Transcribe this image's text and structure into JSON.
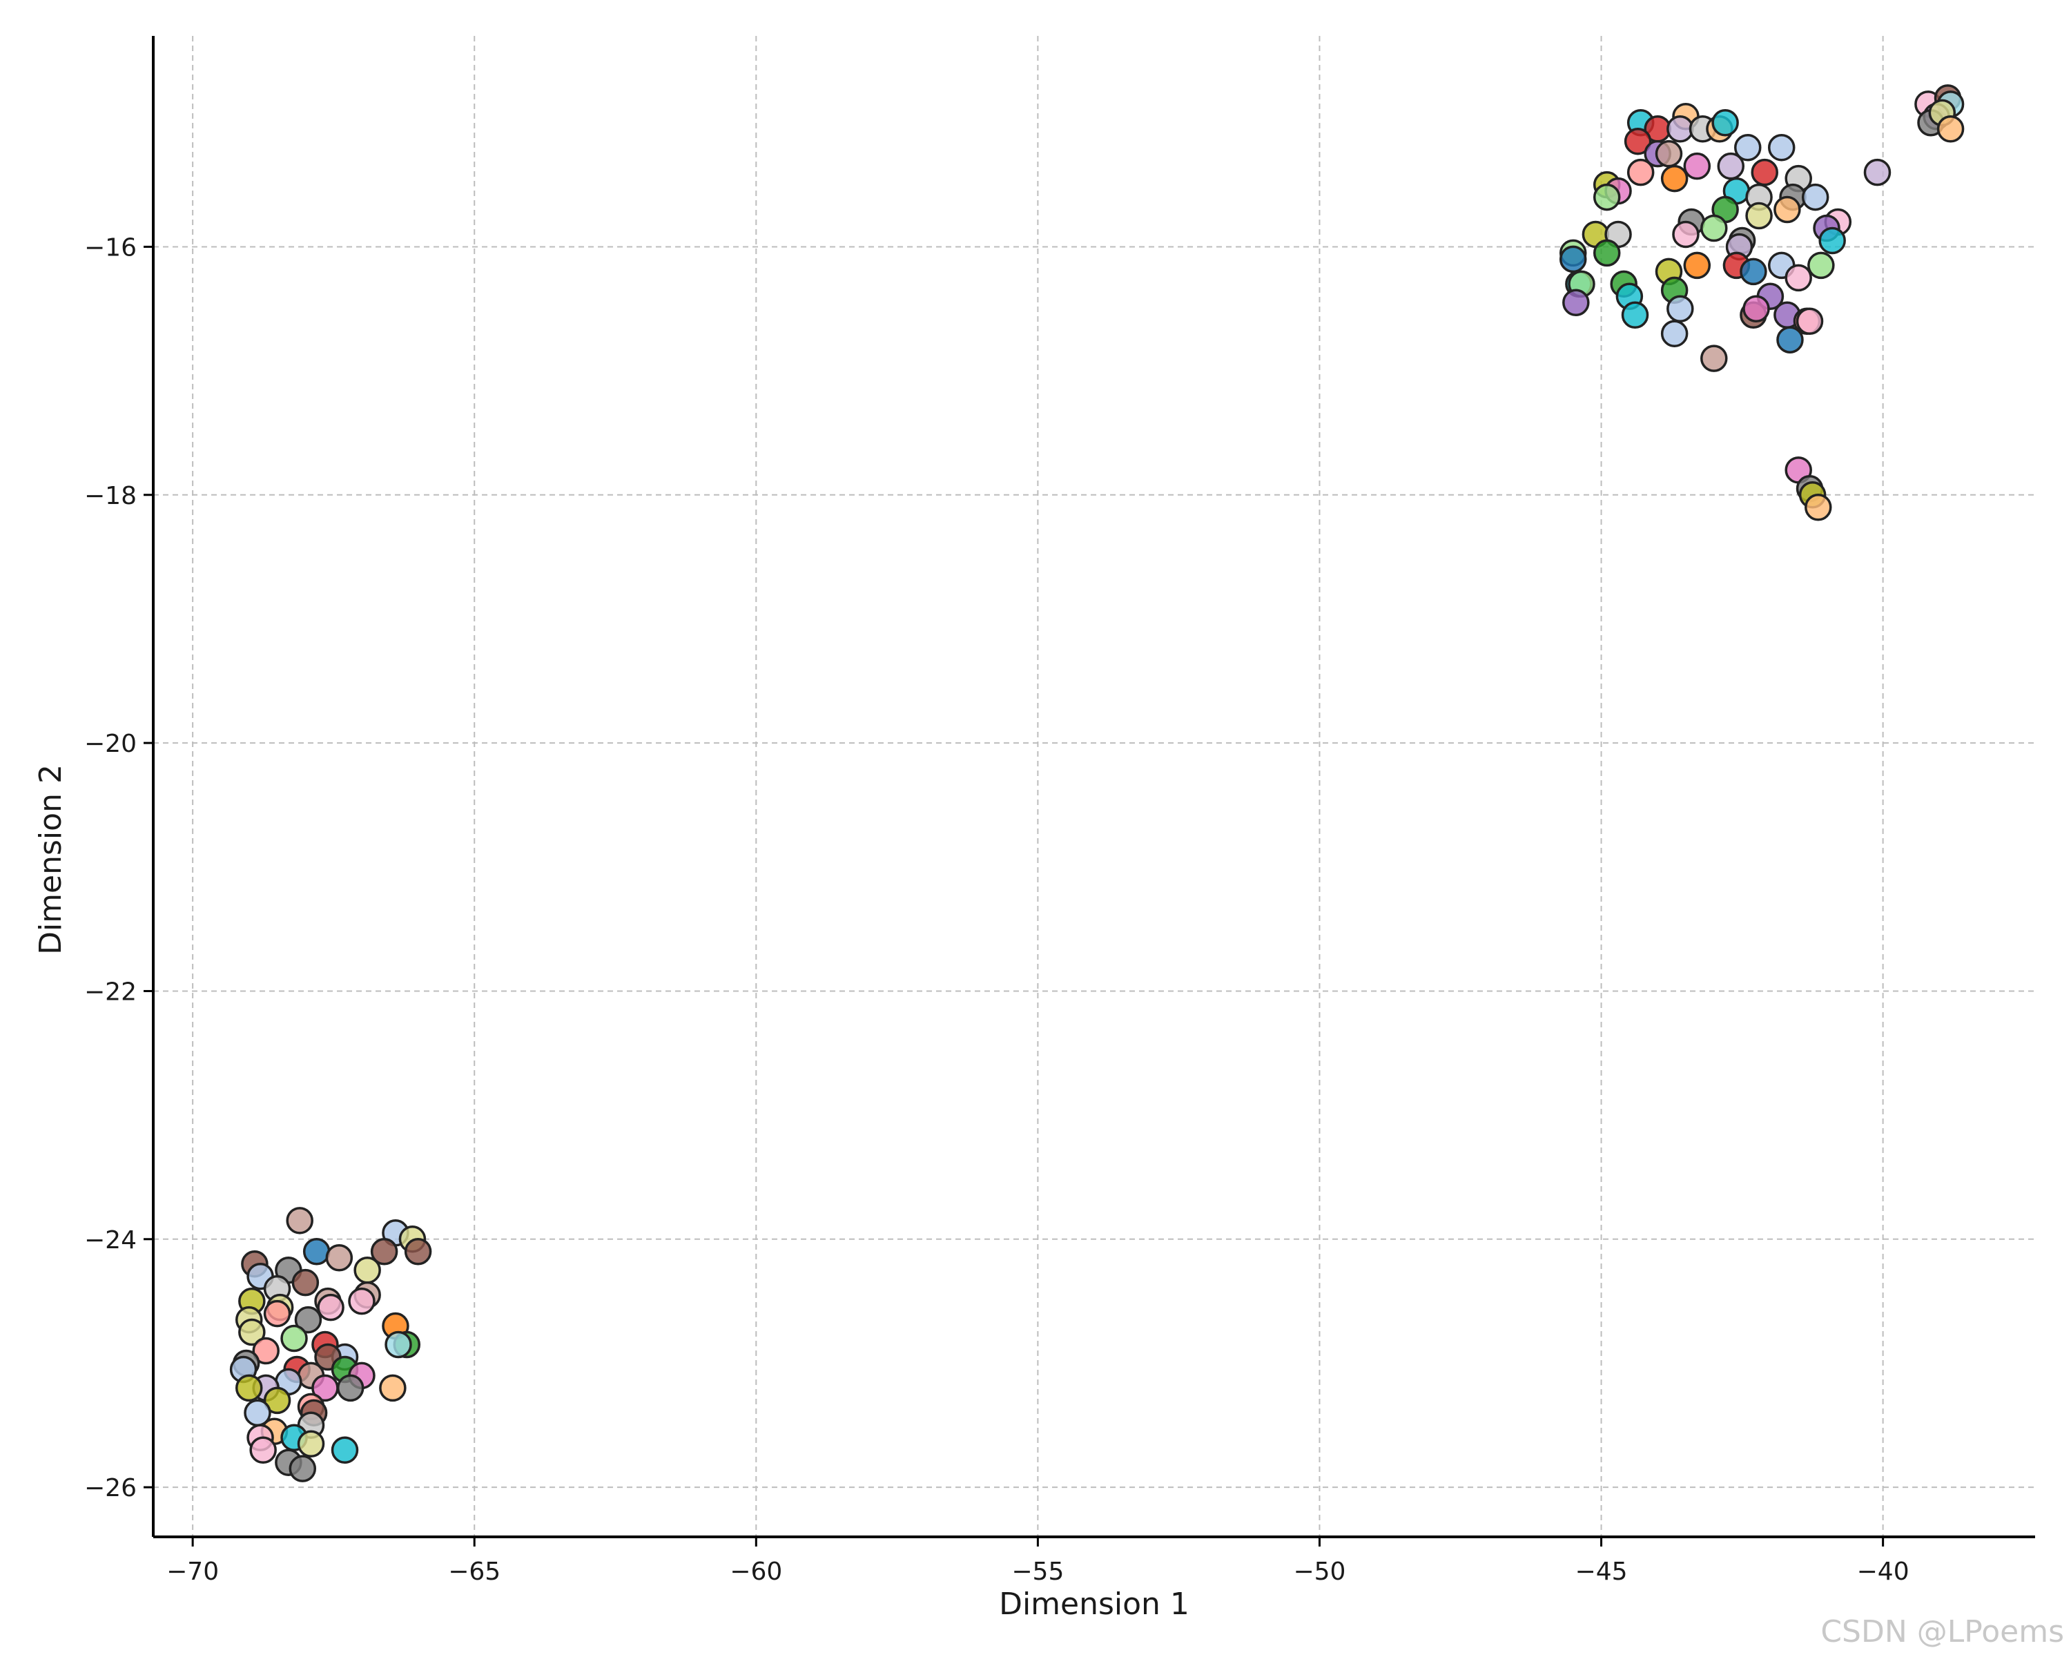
{
  "chart_data": {
    "type": "scatter",
    "title": "",
    "xlabel": "Dimension 1",
    "ylabel": "Dimension 2",
    "xlim": [
      -70.7,
      -37.3
    ],
    "ylim": [
      -26.4,
      -14.3
    ],
    "xticks": [
      -70,
      -65,
      -60,
      -55,
      -50,
      -45,
      -40
    ],
    "yticks": [
      -16,
      -18,
      -20,
      -22,
      -24,
      -26
    ],
    "xtick_labels": [
      "−70",
      "−65",
      "−60",
      "−55",
      "−50",
      "−45",
      "−40"
    ],
    "ytick_labels": [
      "−16",
      "−18",
      "−20",
      "−22",
      "−24",
      "−26"
    ],
    "grid": true,
    "grid_style": "dashed",
    "legend": "none",
    "point_outline_color": "#222222",
    "palette": [
      "#1f77b4",
      "#ff7f0e",
      "#2ca02c",
      "#d62728",
      "#9467bd",
      "#8c564b",
      "#e377c2",
      "#7f7f7f",
      "#bcbd22",
      "#17becf",
      "#aec7e8",
      "#ffbb78",
      "#98df8a",
      "#ff9896",
      "#c5b0d5",
      "#c49c94",
      "#f7b6d2",
      "#c7c7c7",
      "#dbdb8d",
      "#9edae5"
    ],
    "points": [
      {
        "x": -44.3,
        "y": -15.0,
        "color": "#17becf"
      },
      {
        "x": -44.0,
        "y": -15.05,
        "color": "#d62728"
      },
      {
        "x": -44.35,
        "y": -15.15,
        "color": "#d62728"
      },
      {
        "x": -43.5,
        "y": -14.95,
        "color": "#ffbb78"
      },
      {
        "x": -43.6,
        "y": -15.05,
        "color": "#c5b0d5"
      },
      {
        "x": -43.2,
        "y": -15.05,
        "color": "#c7c7c7"
      },
      {
        "x": -42.9,
        "y": -15.05,
        "color": "#ffbb78"
      },
      {
        "x": -42.8,
        "y": -15.0,
        "color": "#17becf"
      },
      {
        "x": -42.4,
        "y": -15.2,
        "color": "#aec7e8"
      },
      {
        "x": -41.8,
        "y": -15.2,
        "color": "#aec7e8"
      },
      {
        "x": -44.0,
        "y": -15.25,
        "color": "#9467bd"
      },
      {
        "x": -43.8,
        "y": -15.25,
        "color": "#c49c94"
      },
      {
        "x": -44.3,
        "y": -15.4,
        "color": "#ff9896"
      },
      {
        "x": -43.7,
        "y": -15.45,
        "color": "#ff7f0e"
      },
      {
        "x": -43.3,
        "y": -15.35,
        "color": "#e377c2"
      },
      {
        "x": -42.7,
        "y": -15.35,
        "color": "#c5b0d5"
      },
      {
        "x": -42.1,
        "y": -15.4,
        "color": "#d62728"
      },
      {
        "x": -41.5,
        "y": -15.45,
        "color": "#c7c7c7"
      },
      {
        "x": -40.1,
        "y": -15.4,
        "color": "#c5b0d5"
      },
      {
        "x": -44.9,
        "y": -15.5,
        "color": "#bcbd22"
      },
      {
        "x": -44.7,
        "y": -15.55,
        "color": "#e377c2"
      },
      {
        "x": -44.9,
        "y": -15.6,
        "color": "#98df8a"
      },
      {
        "x": -42.6,
        "y": -15.55,
        "color": "#17becf"
      },
      {
        "x": -42.2,
        "y": -15.6,
        "color": "#c7c7c7"
      },
      {
        "x": -41.6,
        "y": -15.6,
        "color": "#7f7f7f"
      },
      {
        "x": -41.2,
        "y": -15.6,
        "color": "#aec7e8"
      },
      {
        "x": -41.7,
        "y": -15.7,
        "color": "#ffbb78"
      },
      {
        "x": -42.8,
        "y": -15.7,
        "color": "#2ca02c"
      },
      {
        "x": -42.2,
        "y": -15.75,
        "color": "#dbdb8d"
      },
      {
        "x": -43.4,
        "y": -15.8,
        "color": "#7f7f7f"
      },
      {
        "x": -40.8,
        "y": -15.8,
        "color": "#f7b6d2"
      },
      {
        "x": -41.0,
        "y": -15.85,
        "color": "#9467bd"
      },
      {
        "x": -45.1,
        "y": -15.9,
        "color": "#bcbd22"
      },
      {
        "x": -44.7,
        "y": -15.9,
        "color": "#c7c7c7"
      },
      {
        "x": -43.5,
        "y": -15.9,
        "color": "#f7b6d2"
      },
      {
        "x": -43.0,
        "y": -15.85,
        "color": "#98df8a"
      },
      {
        "x": -40.9,
        "y": -15.95,
        "color": "#17becf"
      },
      {
        "x": -42.5,
        "y": -15.95,
        "color": "#7f7f7f"
      },
      {
        "x": -42.55,
        "y": -16.0,
        "color": "#c5b0d5"
      },
      {
        "x": -45.5,
        "y": -16.05,
        "color": "#98df8a"
      },
      {
        "x": -44.9,
        "y": -16.05,
        "color": "#2ca02c"
      },
      {
        "x": -45.5,
        "y": -16.1,
        "color": "#1f77b4"
      },
      {
        "x": -43.3,
        "y": -16.15,
        "color": "#ff7f0e"
      },
      {
        "x": -42.6,
        "y": -16.15,
        "color": "#d62728"
      },
      {
        "x": -41.8,
        "y": -16.15,
        "color": "#aec7e8"
      },
      {
        "x": -41.1,
        "y": -16.15,
        "color": "#98df8a"
      },
      {
        "x": -43.8,
        "y": -16.2,
        "color": "#bcbd22"
      },
      {
        "x": -42.3,
        "y": -16.2,
        "color": "#1f77b4"
      },
      {
        "x": -41.5,
        "y": -16.25,
        "color": "#f7b6d2"
      },
      {
        "x": -45.4,
        "y": -16.3,
        "color": "#17becf"
      },
      {
        "x": -45.35,
        "y": -16.3,
        "color": "#98df8a"
      },
      {
        "x": -44.6,
        "y": -16.3,
        "color": "#2ca02c"
      },
      {
        "x": -43.7,
        "y": -16.35,
        "color": "#2ca02c"
      },
      {
        "x": -44.5,
        "y": -16.4,
        "color": "#17becf"
      },
      {
        "x": -42.0,
        "y": -16.4,
        "color": "#9467bd"
      },
      {
        "x": -45.45,
        "y": -16.45,
        "color": "#9467bd"
      },
      {
        "x": -43.6,
        "y": -16.5,
        "color": "#aec7e8"
      },
      {
        "x": -42.3,
        "y": -16.55,
        "color": "#8c564b"
      },
      {
        "x": -42.25,
        "y": -16.5,
        "color": "#e377c2"
      },
      {
        "x": -41.7,
        "y": -16.55,
        "color": "#9467bd"
      },
      {
        "x": -44.4,
        "y": -16.55,
        "color": "#17becf"
      },
      {
        "x": -41.35,
        "y": -16.6,
        "color": "#ff9896"
      },
      {
        "x": -41.3,
        "y": -16.6,
        "color": "#f7b6d2"
      },
      {
        "x": -43.7,
        "y": -16.7,
        "color": "#aec7e8"
      },
      {
        "x": -41.65,
        "y": -16.75,
        "color": "#1f77b4"
      },
      {
        "x": -43.0,
        "y": -16.9,
        "color": "#c49c94"
      },
      {
        "x": -41.5,
        "y": -17.8,
        "color": "#e377c2"
      },
      {
        "x": -41.3,
        "y": -17.95,
        "color": "#7f7f7f"
      },
      {
        "x": -41.25,
        "y": -18.0,
        "color": "#bcbd22"
      },
      {
        "x": -41.15,
        "y": -18.1,
        "color": "#ffbb78"
      },
      {
        "x": -39.2,
        "y": -14.85,
        "color": "#f7b6d2"
      },
      {
        "x": -38.85,
        "y": -14.8,
        "color": "#8c564b"
      },
      {
        "x": -38.8,
        "y": -14.85,
        "color": "#9edae5"
      },
      {
        "x": -39.05,
        "y": -14.95,
        "color": "#c5b0d5"
      },
      {
        "x": -39.15,
        "y": -15.0,
        "color": "#7f7f7f"
      },
      {
        "x": -38.95,
        "y": -14.92,
        "color": "#dbdb8d"
      },
      {
        "x": -38.8,
        "y": -15.05,
        "color": "#ffbb78"
      },
      {
        "x": -68.1,
        "y": -23.85,
        "color": "#c49c94"
      },
      {
        "x": -66.4,
        "y": -23.95,
        "color": "#aec7e8"
      },
      {
        "x": -66.1,
        "y": -24.0,
        "color": "#dbdb8d"
      },
      {
        "x": -66.0,
        "y": -24.1,
        "color": "#8c564b"
      },
      {
        "x": -66.6,
        "y": -24.1,
        "color": "#8c564b"
      },
      {
        "x": -67.8,
        "y": -24.1,
        "color": "#1f77b4"
      },
      {
        "x": -67.4,
        "y": -24.15,
        "color": "#c49c94"
      },
      {
        "x": -68.9,
        "y": -24.2,
        "color": "#8c564b"
      },
      {
        "x": -68.3,
        "y": -24.25,
        "color": "#7f7f7f"
      },
      {
        "x": -68.8,
        "y": -24.3,
        "color": "#aec7e8"
      },
      {
        "x": -66.9,
        "y": -24.25,
        "color": "#dbdb8d"
      },
      {
        "x": -68.0,
        "y": -24.35,
        "color": "#8c564b"
      },
      {
        "x": -68.5,
        "y": -24.4,
        "color": "#c7c7c7"
      },
      {
        "x": -66.9,
        "y": -24.45,
        "color": "#c49c94"
      },
      {
        "x": -68.95,
        "y": -24.5,
        "color": "#bcbd22"
      },
      {
        "x": -67.6,
        "y": -24.5,
        "color": "#c49c94"
      },
      {
        "x": -67.0,
        "y": -24.5,
        "color": "#f7b6d2"
      },
      {
        "x": -68.45,
        "y": -24.55,
        "color": "#dbdb8d"
      },
      {
        "x": -67.55,
        "y": -24.55,
        "color": "#f7b6d2"
      },
      {
        "x": -68.5,
        "y": -24.6,
        "color": "#ff9896"
      },
      {
        "x": -69.0,
        "y": -24.65,
        "color": "#dbdb8d"
      },
      {
        "x": -67.95,
        "y": -24.65,
        "color": "#7f7f7f"
      },
      {
        "x": -66.4,
        "y": -24.7,
        "color": "#ff7f0e"
      },
      {
        "x": -68.95,
        "y": -24.75,
        "color": "#dbdb8d"
      },
      {
        "x": -68.2,
        "y": -24.8,
        "color": "#98df8a"
      },
      {
        "x": -67.65,
        "y": -24.85,
        "color": "#d62728"
      },
      {
        "x": -66.2,
        "y": -24.85,
        "color": "#2ca02c"
      },
      {
        "x": -66.35,
        "y": -24.85,
        "color": "#9edae5"
      },
      {
        "x": -68.7,
        "y": -24.9,
        "color": "#ff9896"
      },
      {
        "x": -67.3,
        "y": -24.95,
        "color": "#aec7e8"
      },
      {
        "x": -67.6,
        "y": -24.95,
        "color": "#8c564b"
      },
      {
        "x": -69.05,
        "y": -25.0,
        "color": "#7f7f7f"
      },
      {
        "x": -68.15,
        "y": -25.05,
        "color": "#d62728"
      },
      {
        "x": -67.3,
        "y": -25.05,
        "color": "#2ca02c"
      },
      {
        "x": -67.9,
        "y": -25.1,
        "color": "#c49c94"
      },
      {
        "x": -69.1,
        "y": -25.05,
        "color": "#aec7e8"
      },
      {
        "x": -68.3,
        "y": -25.15,
        "color": "#aec7e8"
      },
      {
        "x": -68.7,
        "y": -25.2,
        "color": "#c5b0d5"
      },
      {
        "x": -67.0,
        "y": -25.1,
        "color": "#e377c2"
      },
      {
        "x": -69.0,
        "y": -25.2,
        "color": "#bcbd22"
      },
      {
        "x": -67.65,
        "y": -25.2,
        "color": "#e377c2"
      },
      {
        "x": -67.2,
        "y": -25.2,
        "color": "#7f7f7f"
      },
      {
        "x": -66.45,
        "y": -25.2,
        "color": "#ffbb78"
      },
      {
        "x": -68.5,
        "y": -25.3,
        "color": "#bcbd22"
      },
      {
        "x": -67.9,
        "y": -25.35,
        "color": "#ff9896"
      },
      {
        "x": -68.85,
        "y": -25.4,
        "color": "#aec7e8"
      },
      {
        "x": -67.85,
        "y": -25.4,
        "color": "#8c564b"
      },
      {
        "x": -67.9,
        "y": -25.5,
        "color": "#c7c7c7"
      },
      {
        "x": -68.55,
        "y": -25.55,
        "color": "#ffbb78"
      },
      {
        "x": -68.8,
        "y": -25.6,
        "color": "#f7b6d2"
      },
      {
        "x": -68.2,
        "y": -25.6,
        "color": "#17becf"
      },
      {
        "x": -67.9,
        "y": -25.65,
        "color": "#dbdb8d"
      },
      {
        "x": -68.75,
        "y": -25.7,
        "color": "#f7b6d2"
      },
      {
        "x": -67.3,
        "y": -25.7,
        "color": "#17becf"
      },
      {
        "x": -68.3,
        "y": -25.8,
        "color": "#7f7f7f"
      },
      {
        "x": -68.05,
        "y": -25.85,
        "color": "#7f7f7f"
      }
    ]
  },
  "watermark": "CSDN @LPoems"
}
